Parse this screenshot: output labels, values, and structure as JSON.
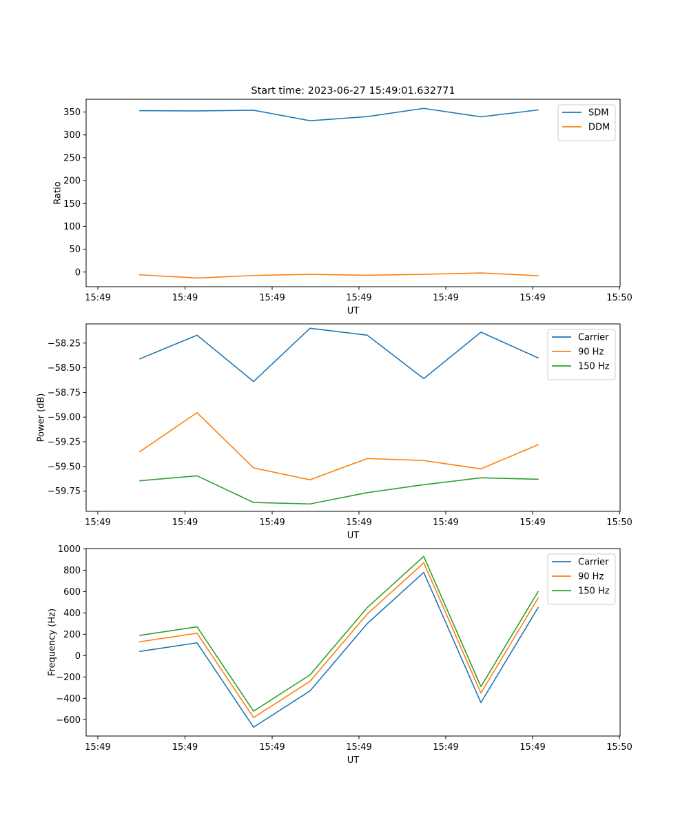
{
  "figure": {
    "title": "Start time: 2023-06-27 15:49:01.632771"
  },
  "chart_data": [
    {
      "type": "line",
      "xlabel": "UT",
      "ylabel": "Ratio",
      "x_tick_labels": [
        "15:49",
        "15:49",
        "15:49",
        "15:49",
        "15:49",
        "15:49",
        "15:50"
      ],
      "y_ticks": [
        0,
        50,
        100,
        150,
        200,
        250,
        300,
        350
      ],
      "ylim": [
        -32,
        378
      ],
      "legend": "top-right",
      "grid": false,
      "series": [
        {
          "name": "SDM",
          "color": "#1f77b4",
          "values": [
            353,
            352.5,
            354,
            331,
            340,
            358,
            339.5,
            354.5
          ]
        },
        {
          "name": "DDM",
          "color": "#ff7f0e",
          "values": [
            -6,
            -13,
            -7.5,
            -5,
            -7,
            -5,
            -2,
            -8
          ]
        }
      ]
    },
    {
      "type": "line",
      "xlabel": "UT",
      "ylabel": "Power (dB)",
      "x_tick_labels": [
        "15:49",
        "15:49",
        "15:49",
        "15:49",
        "15:49",
        "15:49",
        "15:50"
      ],
      "y_ticks": [
        -59.75,
        -59.5,
        -59.25,
        -59.0,
        -58.75,
        -58.5,
        -58.25
      ],
      "y_tick_labels": [
        "−59.75",
        "−59.50",
        "−59.25",
        "−59.00",
        "−58.75",
        "−58.50",
        "−58.25"
      ],
      "ylim": [
        -59.955,
        -58.056
      ],
      "legend": "top-right",
      "grid": false,
      "series": [
        {
          "name": "Carrier",
          "color": "#1f77b4",
          "values": [
            -58.41,
            -58.17,
            -58.64,
            -58.1,
            -58.17,
            -58.61,
            -58.14,
            -58.4
          ]
        },
        {
          "name": "90 Hz",
          "color": "#ff7f0e",
          "values": [
            -59.35,
            -58.955,
            -59.515,
            -59.635,
            -59.42,
            -59.44,
            -59.525,
            -59.28
          ]
        },
        {
          "name": "150 Hz",
          "color": "#2ca02c",
          "values": [
            -59.645,
            -59.595,
            -59.865,
            -59.88,
            -59.765,
            -59.685,
            -59.615,
            -59.63
          ]
        }
      ]
    },
    {
      "type": "line",
      "xlabel": "UT",
      "ylabel": "Frequency (Hz)",
      "x_tick_labels": [
        "15:49",
        "15:49",
        "15:49",
        "15:49",
        "15:49",
        "15:49",
        "15:50"
      ],
      "y_ticks": [
        -600,
        -400,
        -200,
        0,
        200,
        400,
        600,
        800,
        1000
      ],
      "y_tick_labels": [
        "−600",
        "−400",
        "−200",
        "0",
        "200",
        "400",
        "600",
        "800",
        "1000"
      ],
      "ylim": [
        -753,
        1003
      ],
      "legend": "top-right",
      "grid": false,
      "series": [
        {
          "name": "Carrier",
          "color": "#1f77b4",
          "values": [
            40,
            120,
            -670,
            -330,
            300,
            780,
            -440,
            450
          ]
        },
        {
          "name": "90 Hz",
          "color": "#ff7f0e",
          "values": [
            130,
            210,
            -580,
            -240,
            390,
            870,
            -350,
            540
          ]
        },
        {
          "name": "150 Hz",
          "color": "#2ca02c",
          "values": [
            190,
            270,
            -520,
            -180,
            450,
            930,
            -290,
            600
          ]
        }
      ]
    }
  ]
}
